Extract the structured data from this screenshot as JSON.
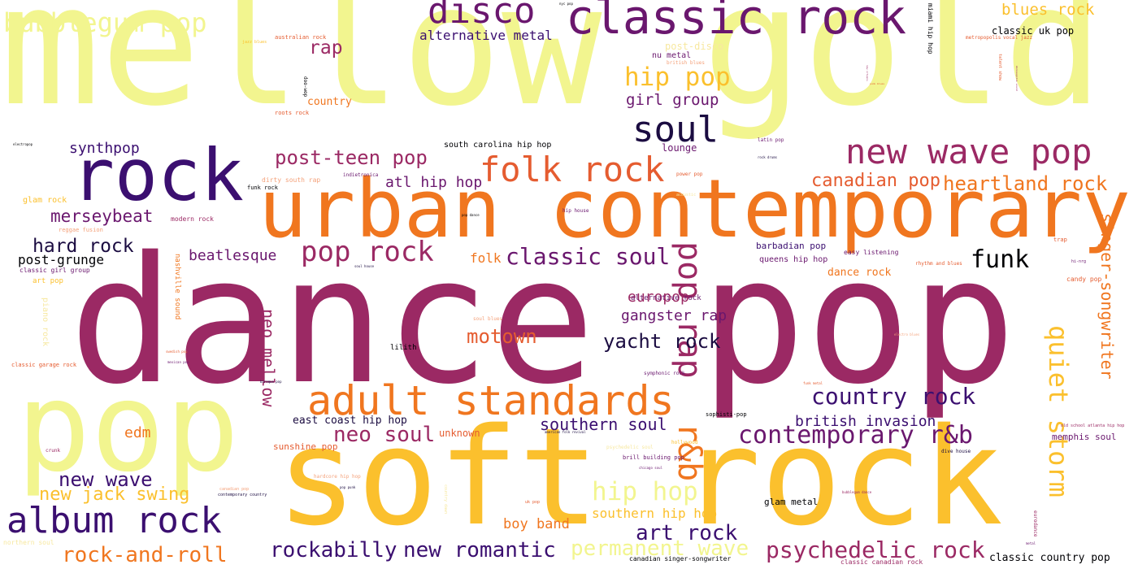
{
  "palette": {
    "pale_yellow": "#f2f58f",
    "amber": "#fbc02d",
    "orange": "#f0761f",
    "coral": "#e55c30",
    "magenta": "#9b2964",
    "plum": "#6a176e",
    "indigo": "#3b0f70",
    "navy": "#1b0c41",
    "black": "#000004",
    "light_coral": "#f4a17a",
    "light_yellow": "#f7e8a0"
  },
  "words": [
    {
      "text": "mellow gold",
      "color": "#f2f58f"
    },
    {
      "text": "dance pop",
      "color": "#9b2964"
    },
    {
      "text": "soft rock",
      "color": "#fbc02d"
    },
    {
      "text": "urban contemporary",
      "color": "#f0761f"
    },
    {
      "text": "pop",
      "color": "#f2f58f"
    },
    {
      "text": "rock",
      "color": "#3b0f70"
    },
    {
      "text": "classic rock",
      "color": "#6a176e"
    },
    {
      "text": "disco",
      "color": "#6a176e"
    },
    {
      "text": "new wave pop",
      "color": "#9b2964"
    },
    {
      "text": "adult standards",
      "color": "#f0761f"
    },
    {
      "text": "folk rock",
      "color": "#e55c30"
    },
    {
      "text": "soul",
      "color": "#1b0c41"
    },
    {
      "text": "album rock",
      "color": "#3b0f70"
    },
    {
      "text": "bubblegum pop",
      "color": "#f2f58f"
    },
    {
      "text": "pop rap",
      "color": "#9b2964"
    },
    {
      "text": "r&b",
      "color": "#f0761f"
    },
    {
      "text": "quiet storm",
      "color": "#fbc02d"
    },
    {
      "text": "contemporary r&b",
      "color": "#6a176e"
    },
    {
      "text": "pop rock",
      "color": "#9b2964"
    },
    {
      "text": "post-teen pop",
      "color": "#9b2964"
    },
    {
      "text": "country rock",
      "color": "#3b0f70"
    },
    {
      "text": "psychedelic rock",
      "color": "#9b2964"
    },
    {
      "text": "hip pop",
      "color": "#fbc02d"
    },
    {
      "text": "hip hop",
      "color": "#f2f58f"
    },
    {
      "text": "classic soul",
      "color": "#6a176e"
    },
    {
      "text": "rockabilly",
      "color": "#3b0f70"
    },
    {
      "text": "new romantic",
      "color": "#3b0f70"
    },
    {
      "text": "permanent wave",
      "color": "#f2f58f"
    },
    {
      "text": "art rock",
      "color": "#3b0f70"
    },
    {
      "text": "neo soul",
      "color": "#9b2964"
    },
    {
      "text": "neo mellow",
      "color": "#9b2964"
    },
    {
      "text": "heartland rock",
      "color": "#f0761f"
    },
    {
      "text": "canadian pop",
      "color": "#e55c30"
    },
    {
      "text": "rock-and-roll",
      "color": "#f0761f"
    },
    {
      "text": "new wave",
      "color": "#3b0f70"
    },
    {
      "text": "new jack swing",
      "color": "#fbc02d"
    },
    {
      "text": "motown",
      "color": "#e55c30"
    },
    {
      "text": "yacht rock",
      "color": "#1b0c41"
    },
    {
      "text": "funk",
      "color": "#000004"
    },
    {
      "text": "singer-songwriter",
      "color": "#f0761f"
    },
    {
      "text": "merseybeat",
      "color": "#6a176e"
    },
    {
      "text": "hard rock",
      "color": "#1b0c41"
    },
    {
      "text": "southern soul",
      "color": "#3b0f70"
    },
    {
      "text": "british invasion",
      "color": "#3b0f70"
    },
    {
      "text": "blues rock",
      "color": "#fbc02d"
    },
    {
      "text": "rap",
      "color": "#9b2964"
    },
    {
      "text": "girl group",
      "color": "#6a176e"
    },
    {
      "text": "synthpop",
      "color": "#3b0f70"
    },
    {
      "text": "atl hip hop",
      "color": "#6a176e"
    },
    {
      "text": "gangster rap",
      "color": "#6a176e"
    },
    {
      "text": "europop",
      "color": "#9b2964"
    },
    {
      "text": "beatlesque",
      "color": "#6a176e"
    },
    {
      "text": "post-grunge",
      "color": "#000004"
    },
    {
      "text": "edm",
      "color": "#f0761f"
    },
    {
      "text": "southern hip hop",
      "color": "#fbc02d"
    },
    {
      "text": "boy band",
      "color": "#f0761f"
    },
    {
      "text": "alternative metal",
      "color": "#3b0f70"
    },
    {
      "text": "folk",
      "color": "#f0761f"
    },
    {
      "text": "east coast hip hop",
      "color": "#1b0c41"
    },
    {
      "text": "classic uk pop",
      "color": "#000004"
    },
    {
      "text": "classic country pop",
      "color": "#000004"
    },
    {
      "text": "country",
      "color": "#f0761f"
    },
    {
      "text": "lounge",
      "color": "#6a176e"
    },
    {
      "text": "dance rock",
      "color": "#f0761f"
    },
    {
      "text": "memphis soul",
      "color": "#6a176e"
    },
    {
      "text": "sunshine pop",
      "color": "#e55c30"
    },
    {
      "text": "unknown",
      "color": "#e55c30"
    },
    {
      "text": "glam metal",
      "color": "#000004"
    },
    {
      "text": "south carolina hip hop",
      "color": "#000004"
    },
    {
      "text": "nu metal",
      "color": "#6a176e"
    },
    {
      "text": "barbadian pop",
      "color": "#3b0f70"
    },
    {
      "text": "queens hip hop",
      "color": "#6a176e"
    },
    {
      "text": "alternative rock",
      "color": "#6a176e"
    },
    {
      "text": "lilith",
      "color": "#000004"
    },
    {
      "text": "post-disco",
      "color": "#f7e8a0"
    },
    {
      "text": "canadian singer-songwriter",
      "color": "#000004"
    },
    {
      "text": "classic canadian rock",
      "color": "#9b2964"
    },
    {
      "text": "brill building pop",
      "color": "#6a176e"
    },
    {
      "text": "nashville sound",
      "color": "#f0761f"
    },
    {
      "text": "piano rock",
      "color": "#f7e8a0"
    },
    {
      "text": "miami hip hop",
      "color": "#000004"
    },
    {
      "text": "glam rock",
      "color": "#fbc02d"
    },
    {
      "text": "classic girl group",
      "color": "#6a176e"
    },
    {
      "text": "art pop",
      "color": "#fbc02d"
    },
    {
      "text": "modern rock",
      "color": "#9b2964"
    },
    {
      "text": "funk rock",
      "color": "#000004"
    },
    {
      "text": "dirty south rap",
      "color": "#f4a17a"
    },
    {
      "text": "indietronica",
      "color": "#6a176e"
    },
    {
      "text": "roots rock",
      "color": "#e55c30"
    },
    {
      "text": "doo-wop",
      "color": "#000004"
    },
    {
      "text": "australian rock",
      "color": "#e55c30"
    },
    {
      "text": "jazz blues",
      "color": "#fbc02d"
    },
    {
      "text": "reggae fusion",
      "color": "#f4a17a"
    },
    {
      "text": "classic garage rock",
      "color": "#e55c30"
    },
    {
      "text": "crunk",
      "color": "#9b2964"
    },
    {
      "text": "northern soul",
      "color": "#f7e8a0"
    },
    {
      "text": "sophisti-pop",
      "color": "#000004"
    },
    {
      "text": "symphonic rock",
      "color": "#6a176e"
    },
    {
      "text": "soul blues",
      "color": "#f4a17a"
    },
    {
      "text": "easy listening",
      "color": "#6a176e"
    },
    {
      "text": "rhythm and blues",
      "color": "#e55c30"
    },
    {
      "text": "hi-nrg",
      "color": "#6a176e"
    },
    {
      "text": "trap",
      "color": "#e55c30"
    },
    {
      "text": "candy pop",
      "color": "#e55c30"
    },
    {
      "text": "latin pop",
      "color": "#6a176e"
    },
    {
      "text": "rock drums",
      "color": "#1b0c41"
    },
    {
      "text": "power pop",
      "color": "#e55c30"
    },
    {
      "text": "hip house",
      "color": "#6a176e"
    },
    {
      "text": "talent show",
      "color": "#e55c30"
    },
    {
      "text": "vocal jazz",
      "color": "#e55c30"
    },
    {
      "text": "metropopolis",
      "color": "#e55c30"
    },
    {
      "text": "british blues",
      "color": "#f4a17a"
    },
    {
      "text": "funk metal",
      "color": "#e55c30"
    },
    {
      "text": "old school atlanta hip hop",
      "color": "#9b2964"
    },
    {
      "text": "eurodance",
      "color": "#9b2964"
    },
    {
      "text": "hollywood",
      "color": "#fbc02d"
    },
    {
      "text": "dive house",
      "color": "#1b0c41"
    },
    {
      "text": "contemporary country",
      "color": "#1b0c41"
    },
    {
      "text": "hardcore hip hop",
      "color": "#f4a17a"
    },
    {
      "text": "electropop",
      "color": "#000004"
    },
    {
      "text": "uk pop",
      "color": "#e55c30"
    },
    {
      "text": "bubblegum dance",
      "color": "#9b2964"
    },
    {
      "text": "chicago soul",
      "color": "#6a176e"
    },
    {
      "text": "swedish pop",
      "color": "#e55c30"
    },
    {
      "text": "mexican pop",
      "color": "#6a176e"
    },
    {
      "text": "country dawn",
      "color": "#f7e8a0"
    },
    {
      "text": "pop punk",
      "color": "#1b0c41"
    },
    {
      "text": "baroque pop",
      "color": "#1b0c41"
    },
    {
      "text": "pop dance",
      "color": "#000004"
    },
    {
      "text": "soul house",
      "color": "#1b0c41"
    },
    {
      "text": "psychedelic soul",
      "color": "#f7e8a0"
    },
    {
      "text": "american folk revival",
      "color": "#1b0c41"
    },
    {
      "text": "electro blues",
      "color": "#f4a17a"
    },
    {
      "text": "canadian pop",
      "color": "#f4a17a"
    },
    {
      "text": "acoustic",
      "color": "#f7e8a0"
    },
    {
      "text": "nyc pop",
      "color": "#000004"
    },
    {
      "text": "metal",
      "color": "#6a176e"
    },
    {
      "text": "new orleans",
      "color": "#9b2964"
    },
    {
      "text": "punk blues",
      "color": "#e55c30"
    },
    {
      "text": "minneapolis sound",
      "color": "#9b2964"
    }
  ]
}
